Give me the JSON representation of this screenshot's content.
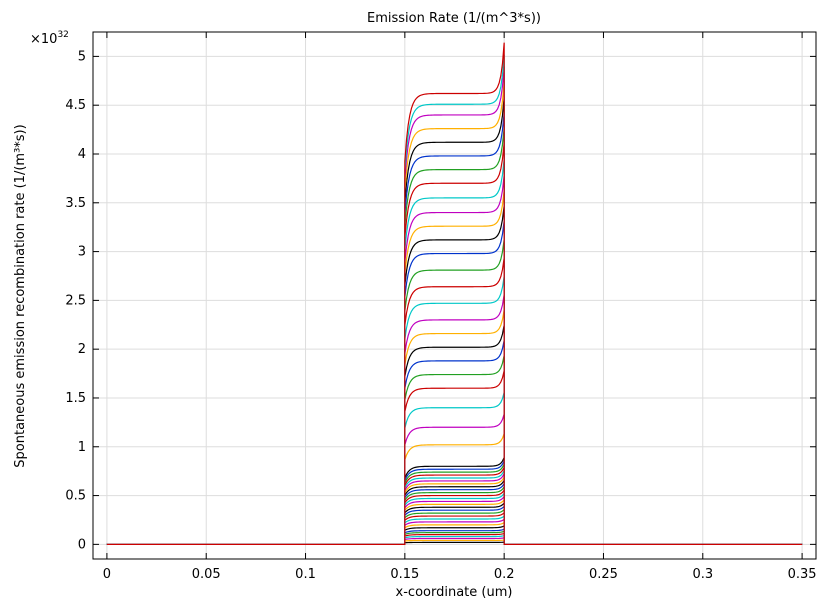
{
  "chart_data": {
    "type": "line",
    "title": "Emission Rate (1/(m^3*s))",
    "xlabel": "x-coordinate (um)",
    "ylabel": "Spontaneous emission recombination rate (1/(m³*s))",
    "y_multiplier": "×10",
    "y_multiplier_exp": "32",
    "xlim": [
      -0.007,
      0.357
    ],
    "ylim": [
      -0.15,
      5.25
    ],
    "xticks": [
      0,
      0.05,
      0.1,
      0.15,
      0.2,
      0.25,
      0.3,
      0.35
    ],
    "xtick_labels": [
      "0",
      "0.05",
      "0.1",
      "0.15",
      "0.2",
      "0.25",
      "0.3",
      "0.35"
    ],
    "yticks": [
      0,
      0.5,
      1,
      1.5,
      2,
      2.5,
      3,
      3.5,
      4,
      4.5,
      5
    ],
    "ytick_labels": [
      "0",
      "0.5",
      "1",
      "1.5",
      "2",
      "2.5",
      "3",
      "3.5",
      "4",
      "4.5",
      "5"
    ],
    "grid": true,
    "domain": [
      0,
      0.35
    ],
    "active_region": [
      0.15,
      0.2
    ],
    "colors": [
      "#000000",
      "#ffb000",
      "#c000c0",
      "#00c8c8",
      "#cc0000",
      "#22a022",
      "#0033cc"
    ],
    "series_plateaus": [
      0.02,
      0.04,
      0.06,
      0.08,
      0.1,
      0.12,
      0.14,
      0.17,
      0.2,
      0.23,
      0.26,
      0.29,
      0.32,
      0.35,
      0.38,
      0.41,
      0.44,
      0.47,
      0.5,
      0.53,
      0.56,
      0.59,
      0.62,
      0.65,
      0.68,
      0.71,
      0.74,
      0.77,
      0.8,
      1.02,
      1.2,
      1.4,
      1.6,
      1.74,
      1.88,
      2.02,
      2.16,
      2.3,
      2.47,
      2.64,
      2.81,
      2.98,
      3.12,
      3.26,
      3.4,
      3.55,
      3.7,
      3.84,
      3.98,
      4.12,
      4.26,
      4.4,
      4.51,
      4.62
    ],
    "left_drop": 0.15,
    "right_rise": 0.47
  }
}
